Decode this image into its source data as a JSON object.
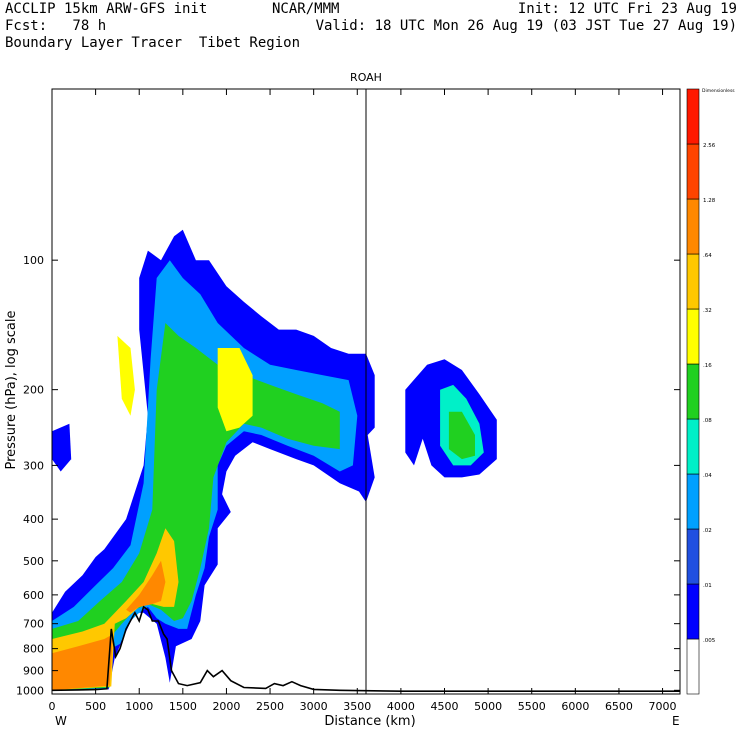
{
  "header": {
    "left1": "ACCLIP 15km ARW-GFS init",
    "left2": "Fcst:   78 h",
    "left3": "Boundary Layer Tracer  Tibet Region",
    "center": "NCAR/MMM",
    "right1": "Init: 12 UTC Fri 23 Aug 19",
    "right2": "Valid: 18 UTC Mon 26 Aug 19 (03 JST Tue 27 Aug 19)"
  },
  "chart_data": {
    "type": "heatmap",
    "title": "ROAH",
    "xlabel": "Distance (km)",
    "ylabel": "Pressure (hPa), log scale",
    "x_ticks": [
      0,
      500,
      1000,
      1500,
      2000,
      2500,
      3000,
      3500,
      4000,
      4500,
      5000,
      5500,
      6000,
      6500,
      7000
    ],
    "y_ticks": [
      100,
      200,
      300,
      400,
      500,
      600,
      700,
      800,
      900,
      1000
    ],
    "xlim": [
      0,
      7200
    ],
    "ylim": [
      1020,
      40
    ],
    "yscale": "log",
    "x_end_labels": {
      "left": "W",
      "right": "E"
    },
    "vertical_marker_km": 3600,
    "colorbar": {
      "unit_label": "Dimensionless",
      "levels": [
        ".005",
        ".01",
        ".02",
        ".04",
        ".08",
        ".16",
        ".32",
        ".64",
        "1.28",
        "2.56"
      ],
      "colors": [
        "#ffffff",
        "#0000ff",
        "#2050e0",
        "#00a0ff",
        "#00f0c8",
        "#20d020",
        "#ffff00",
        "#ffc800",
        "#ff8800",
        "#ff4400",
        "#ff1800"
      ]
    },
    "terrain_pressure_hpa": [
      [
        0,
        1000
      ],
      [
        300,
        998
      ],
      [
        500,
        996
      ],
      [
        630,
        992
      ],
      [
        680,
        720
      ],
      [
        730,
        835
      ],
      [
        780,
        800
      ],
      [
        850,
        720
      ],
      [
        950,
        660
      ],
      [
        1000,
        690
      ],
      [
        1050,
        640
      ],
      [
        1100,
        650
      ],
      [
        1150,
        690
      ],
      [
        1220,
        690
      ],
      [
        1280,
        740
      ],
      [
        1320,
        760
      ],
      [
        1370,
        900
      ],
      [
        1450,
        965
      ],
      [
        1550,
        975
      ],
      [
        1700,
        960
      ],
      [
        1780,
        900
      ],
      [
        1850,
        930
      ],
      [
        1950,
        900
      ],
      [
        2050,
        950
      ],
      [
        2200,
        985
      ],
      [
        2450,
        990
      ],
      [
        2550,
        965
      ],
      [
        2650,
        975
      ],
      [
        2750,
        955
      ],
      [
        2850,
        975
      ],
      [
        3000,
        995
      ],
      [
        3300,
        1000
      ],
      [
        4000,
        1005
      ],
      [
        7200,
        1005
      ]
    ],
    "tracer_regions": [
      {
        "level": 1,
        "pts": [
          [
            0,
            1000
          ],
          [
            0,
            660
          ],
          [
            150,
            590
          ],
          [
            350,
            540
          ],
          [
            500,
            490
          ],
          [
            600,
            470
          ],
          [
            850,
            400
          ],
          [
            1050,
            300
          ],
          [
            1100,
            230
          ],
          [
            1000,
            145
          ],
          [
            1000,
            110
          ],
          [
            1100,
            95
          ],
          [
            1250,
            100
          ],
          [
            1400,
            88
          ],
          [
            1500,
            85
          ],
          [
            1650,
            100
          ],
          [
            1800,
            100
          ],
          [
            2000,
            115
          ],
          [
            2200,
            125
          ],
          [
            2400,
            135
          ],
          [
            2600,
            145
          ],
          [
            2800,
            145
          ],
          [
            3000,
            150
          ],
          [
            3200,
            160
          ],
          [
            3400,
            165
          ],
          [
            3600,
            165
          ],
          [
            3700,
            185
          ],
          [
            3700,
            245
          ],
          [
            3620,
            255
          ],
          [
            3700,
            320
          ],
          [
            3600,
            365
          ],
          [
            3520,
            345
          ],
          [
            3300,
            330
          ],
          [
            3000,
            300
          ],
          [
            2800,
            290
          ],
          [
            2500,
            275
          ],
          [
            2300,
            265
          ],
          [
            2100,
            285
          ],
          [
            2000,
            310
          ],
          [
            1950,
            350
          ],
          [
            2050,
            385
          ],
          [
            1900,
            420
          ],
          [
            1900,
            510
          ],
          [
            1750,
            570
          ],
          [
            1700,
            690
          ],
          [
            1600,
            760
          ],
          [
            1420,
            790
          ],
          [
            1350,
            960
          ],
          [
            1300,
            840
          ],
          [
            1200,
            700
          ],
          [
            1050,
            660
          ],
          [
            950,
            660
          ],
          [
            850,
            730
          ],
          [
            720,
            840
          ],
          [
            650,
            995
          ],
          [
            300,
            998
          ]
        ]
      },
      {
        "level": 3,
        "pts": [
          [
            0,
            1000
          ],
          [
            0,
            690
          ],
          [
            250,
            640
          ],
          [
            500,
            570
          ],
          [
            700,
            520
          ],
          [
            900,
            460
          ],
          [
            1050,
            330
          ],
          [
            1130,
            170
          ],
          [
            1200,
            110
          ],
          [
            1350,
            100
          ],
          [
            1500,
            110
          ],
          [
            1700,
            120
          ],
          [
            1900,
            140
          ],
          [
            2200,
            160
          ],
          [
            2500,
            175
          ],
          [
            2800,
            180
          ],
          [
            3100,
            185
          ],
          [
            3400,
            190
          ],
          [
            3500,
            230
          ],
          [
            3450,
            300
          ],
          [
            3300,
            310
          ],
          [
            3000,
            285
          ],
          [
            2700,
            270
          ],
          [
            2400,
            255
          ],
          [
            2200,
            250
          ],
          [
            2000,
            270
          ],
          [
            1900,
            300
          ],
          [
            1900,
            380
          ],
          [
            1800,
            440
          ],
          [
            1750,
            520
          ],
          [
            1650,
            600
          ],
          [
            1550,
            720
          ],
          [
            1450,
            720
          ],
          [
            1300,
            700
          ],
          [
            1200,
            680
          ],
          [
            1100,
            640
          ],
          [
            1000,
            660
          ],
          [
            900,
            690
          ],
          [
            780,
            780
          ],
          [
            680,
            800
          ],
          [
            640,
            990
          ]
        ]
      },
      {
        "level": 5,
        "pts": [
          [
            0,
            1000
          ],
          [
            0,
            720
          ],
          [
            300,
            690
          ],
          [
            550,
            620
          ],
          [
            800,
            560
          ],
          [
            1000,
            480
          ],
          [
            1150,
            380
          ],
          [
            1200,
            200
          ],
          [
            1300,
            140
          ],
          [
            1450,
            150
          ],
          [
            1650,
            160
          ],
          [
            1900,
            175
          ],
          [
            2200,
            185
          ],
          [
            2500,
            195
          ],
          [
            2800,
            205
          ],
          [
            3100,
            215
          ],
          [
            3300,
            225
          ],
          [
            3300,
            275
          ],
          [
            3000,
            270
          ],
          [
            2700,
            260
          ],
          [
            2400,
            245
          ],
          [
            2200,
            240
          ],
          [
            2000,
            265
          ],
          [
            1850,
            320
          ],
          [
            1800,
            420
          ],
          [
            1700,
            520
          ],
          [
            1600,
            620
          ],
          [
            1500,
            680
          ],
          [
            1400,
            690
          ],
          [
            1250,
            650
          ],
          [
            1100,
            630
          ],
          [
            950,
            650
          ],
          [
            800,
            700
          ],
          [
            700,
            740
          ],
          [
            660,
            985
          ]
        ]
      },
      {
        "level": 7,
        "pts": [
          [
            0,
            1000
          ],
          [
            0,
            760
          ],
          [
            350,
            730
          ],
          [
            600,
            700
          ],
          [
            850,
            620
          ],
          [
            1050,
            560
          ],
          [
            1200,
            480
          ],
          [
            1300,
            420
          ],
          [
            1400,
            450
          ],
          [
            1450,
            560
          ],
          [
            1400,
            640
          ],
          [
            1280,
            640
          ],
          [
            1150,
            630
          ],
          [
            1000,
            640
          ],
          [
            850,
            680
          ],
          [
            720,
            700
          ],
          [
            680,
            980
          ]
        ]
      },
      {
        "level": 8,
        "pts": [
          [
            0,
            1000
          ],
          [
            0,
            820
          ],
          [
            300,
            790
          ],
          [
            600,
            760
          ],
          [
            700,
            740
          ],
          [
            660,
            975
          ]
        ]
      },
      {
        "level": 8,
        "pts": [
          [
            850,
            650
          ],
          [
            1000,
            600
          ],
          [
            1150,
            540
          ],
          [
            1250,
            500
          ],
          [
            1300,
            560
          ],
          [
            1250,
            620
          ],
          [
            1150,
            630
          ],
          [
            1000,
            640
          ],
          [
            900,
            660
          ]
        ]
      },
      {
        "level": 6,
        "pts": [
          [
            1900,
            160
          ],
          [
            2150,
            160
          ],
          [
            2300,
            185
          ],
          [
            2300,
            230
          ],
          [
            2150,
            245
          ],
          [
            2000,
            250
          ],
          [
            1900,
            220
          ]
        ]
      },
      {
        "level": 6,
        "pts": [
          [
            750,
            150
          ],
          [
            900,
            160
          ],
          [
            950,
            200
          ],
          [
            900,
            230
          ],
          [
            800,
            210
          ]
        ]
      },
      {
        "level": 1,
        "pts": [
          [
            0,
            250
          ],
          [
            200,
            240
          ],
          [
            220,
            290
          ],
          [
            100,
            310
          ],
          [
            0,
            290
          ]
        ]
      },
      {
        "level": 1,
        "pts": [
          [
            4050,
            200
          ],
          [
            4300,
            175
          ],
          [
            4500,
            170
          ],
          [
            4700,
            180
          ],
          [
            4900,
            205
          ],
          [
            5100,
            235
          ],
          [
            5100,
            290
          ],
          [
            4900,
            315
          ],
          [
            4700,
            320
          ],
          [
            4500,
            320
          ],
          [
            4350,
            300
          ],
          [
            4250,
            260
          ],
          [
            4150,
            300
          ],
          [
            4050,
            280
          ]
        ]
      },
      {
        "level": 4,
        "pts": [
          [
            4450,
            200
          ],
          [
            4600,
            195
          ],
          [
            4750,
            210
          ],
          [
            4900,
            240
          ],
          [
            4950,
            280
          ],
          [
            4800,
            300
          ],
          [
            4600,
            300
          ],
          [
            4450,
            270
          ]
        ]
      },
      {
        "level": 5,
        "pts": [
          [
            4550,
            225
          ],
          [
            4700,
            225
          ],
          [
            4850,
            255
          ],
          [
            4850,
            285
          ],
          [
            4700,
            290
          ],
          [
            4550,
            275
          ]
        ]
      }
    ]
  }
}
